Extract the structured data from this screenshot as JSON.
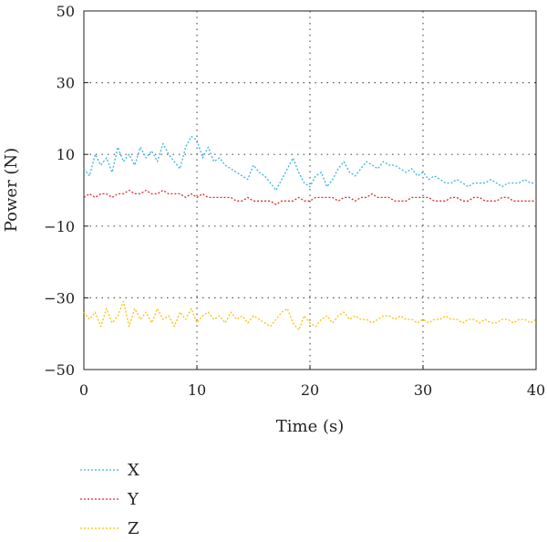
{
  "chart_data": {
    "type": "line",
    "title": "",
    "xlabel": "Time (s)",
    "ylabel": "Power (N)",
    "xlim": [
      0,
      40
    ],
    "ylim": [
      -50,
      50
    ],
    "xticks": [
      0,
      10,
      20,
      30,
      40
    ],
    "xtick_labels": [
      "0",
      "10",
      "20",
      "30",
      "40"
    ],
    "yticks": [
      50,
      30,
      10,
      -10,
      -30,
      -50
    ],
    "ytick_labels": [
      "50",
      "30",
      "10",
      "−10",
      "−30",
      "−50"
    ],
    "grid": "dotted",
    "legend_position": "bottom-left",
    "x": [
      0,
      0.5,
      1,
      1.5,
      2,
      2.5,
      3,
      3.5,
      4,
      4.5,
      5,
      5.5,
      6,
      6.5,
      7,
      7.5,
      8,
      8.5,
      9,
      9.5,
      10,
      10.5,
      11,
      11.5,
      12,
      12.5,
      13,
      13.5,
      14,
      14.5,
      15,
      15.5,
      16,
      16.5,
      17,
      17.5,
      18,
      18.5,
      19,
      19.5,
      20,
      20.5,
      21,
      21.5,
      22,
      22.5,
      23,
      23.5,
      24,
      24.5,
      25,
      25.5,
      26,
      26.5,
      27,
      27.5,
      28,
      28.5,
      29,
      29.5,
      30,
      30.5,
      31,
      31.5,
      32,
      32.5,
      33,
      33.5,
      34,
      34.5,
      35,
      35.5,
      36,
      36.5,
      37,
      37.5,
      38,
      38.5,
      39,
      39.5,
      40
    ],
    "series": [
      {
        "name": "X",
        "color": "#3bb3d8",
        "values": [
          6,
          4,
          10,
          7,
          9,
          5,
          12,
          8,
          10,
          7,
          12,
          9,
          11,
          8,
          13,
          10,
          8,
          6,
          12,
          15,
          14,
          9,
          12,
          8,
          9,
          7,
          6,
          5,
          4,
          3,
          7,
          5,
          4,
          2,
          0,
          3,
          6,
          9,
          5,
          2,
          1,
          4,
          5,
          1,
          3,
          6,
          8,
          5,
          4,
          6,
          8,
          7,
          6,
          8,
          7,
          7,
          6,
          5,
          6,
          4,
          5,
          3,
          4,
          3,
          2,
          2,
          3,
          2,
          1,
          2,
          2,
          2,
          3,
          2,
          1,
          2,
          2,
          2,
          3,
          2,
          2
        ]
      },
      {
        "name": "Y",
        "color": "#e02828",
        "values": [
          -2,
          -1,
          -2,
          -1,
          -1,
          -2,
          -1,
          -1,
          0,
          -1,
          -1,
          0,
          -1,
          -1,
          0,
          -1,
          -1,
          -1,
          -2,
          -1,
          -2,
          -1,
          -2,
          -2,
          -2,
          -2,
          -2,
          -3,
          -3,
          -2,
          -3,
          -3,
          -3,
          -3,
          -4,
          -3,
          -3,
          -3,
          -2,
          -3,
          -3,
          -2,
          -2,
          -2,
          -2,
          -3,
          -2,
          -2,
          -3,
          -2,
          -2,
          -1,
          -2,
          -2,
          -2,
          -3,
          -3,
          -3,
          -2,
          -2,
          -2,
          -2,
          -3,
          -3,
          -3,
          -2,
          -2,
          -3,
          -3,
          -2,
          -2,
          -3,
          -3,
          -3,
          -2,
          -2,
          -3,
          -3,
          -3,
          -3,
          -3
        ]
      },
      {
        "name": "Z",
        "color": "#f5c400",
        "values": [
          -34,
          -36,
          -34,
          -38,
          -33,
          -37,
          -35,
          -31,
          -38,
          -33,
          -36,
          -34,
          -37,
          -33,
          -36,
          -35,
          -38,
          -34,
          -36,
          -33,
          -37,
          -35,
          -34,
          -36,
          -35,
          -37,
          -34,
          -36,
          -35,
          -37,
          -35,
          -36,
          -37,
          -38,
          -36,
          -34,
          -33,
          -37,
          -39,
          -35,
          -37,
          -38,
          -36,
          -35,
          -37,
          -35,
          -34,
          -36,
          -35,
          -36,
          -36,
          -37,
          -36,
          -35,
          -35,
          -36,
          -35,
          -36,
          -36,
          -37,
          -36,
          -37,
          -36,
          -36,
          -35,
          -36,
          -36,
          -37,
          -36,
          -36,
          -37,
          -36,
          -37,
          -37,
          -36,
          -36,
          -37,
          -36,
          -36,
          -37,
          -36
        ]
      }
    ]
  }
}
